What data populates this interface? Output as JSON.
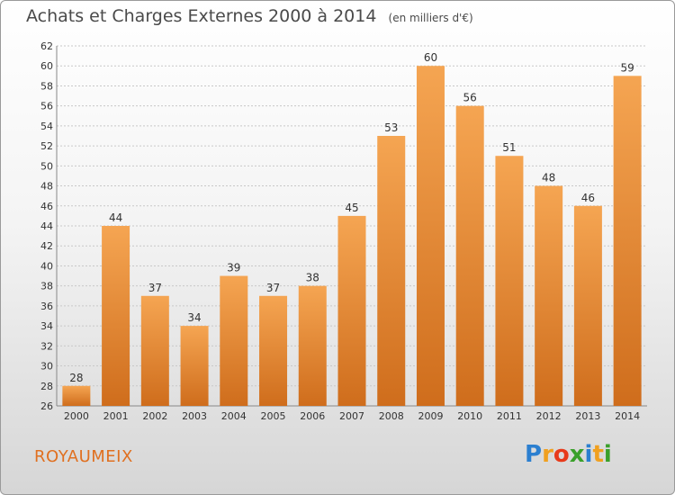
{
  "title": "Achats et Charges Externes 2000 à 2014",
  "unit": "(en milliers d'€)",
  "town": "ROYAUMEIX",
  "logo": {
    "text": "Proxiti",
    "letter_colors": [
      "#2b7fd0",
      "#f0a020",
      "#e83a1a",
      "#3aa02a",
      "#2b7fd0",
      "#f0a020",
      "#3aa02a"
    ]
  },
  "colors": {
    "bar_top": "#f5a552",
    "bar_bottom": "#cf6d1c",
    "grid": "#c8c8c8",
    "axis_text": "#333333"
  },
  "chart_data": {
    "type": "bar",
    "title": "Achats et Charges Externes 2000 à 2014",
    "xlabel": "",
    "ylabel": "",
    "categories": [
      "2000",
      "2001",
      "2002",
      "2003",
      "2004",
      "2005",
      "2006",
      "2007",
      "2008",
      "2009",
      "2010",
      "2011",
      "2012",
      "2013",
      "2014"
    ],
    "values": [
      28,
      44,
      37,
      34,
      39,
      37,
      38,
      45,
      53,
      60,
      56,
      51,
      48,
      46,
      59
    ],
    "ylim": [
      26,
      62
    ],
    "yticks": [
      26,
      28,
      30,
      32,
      34,
      36,
      38,
      40,
      42,
      44,
      46,
      48,
      50,
      52,
      54,
      56,
      58,
      60,
      62
    ],
    "grid": true,
    "data_labels": true
  }
}
